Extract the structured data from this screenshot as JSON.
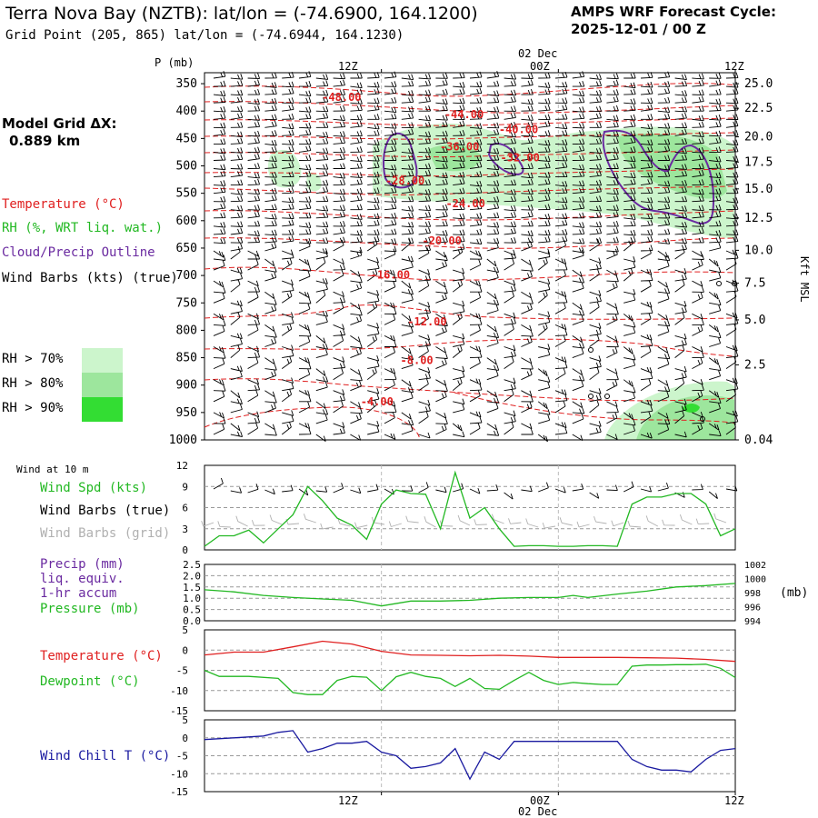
{
  "header": {
    "title": "Terra Nova Bay (NZTB):  lat/lon = (-74.6900, 164.1200)",
    "subtitle": "Grid Point (205, 865) lat/lon = (-74.6944, 164.1230)",
    "cycle_line1": "AMPS WRF Forecast Cycle:",
    "cycle_line2": "2025-12-01 / 00  Z"
  },
  "model": {
    "label": "Model Grid ΔX:",
    "value": "0.889 km"
  },
  "colors": {
    "temperature": "#e02020",
    "rh": "#22b822",
    "cloud": "#6a2aa0",
    "pressure": "#22b822",
    "windchill": "#1a1aa0",
    "rh70": "#ccf5cc",
    "rh80": "#9de69d",
    "rh90": "#33dd33",
    "grid_barb": "#b0b0b0"
  },
  "upper": {
    "legend": {
      "temperature": "Temperature (°C)",
      "rh": "RH (%, WRT liq. wat.)",
      "cloud": "Cloud/Precip Outline",
      "wind": "Wind Barbs (kts) (true)"
    },
    "rh_legend": [
      {
        "label": "RH > 70%"
      },
      {
        "label": "RH > 80%"
      },
      {
        "label": "RH > 90%"
      }
    ],
    "time_axis": {
      "date_label": "02 Dec",
      "ticks": [
        "12Z",
        "00Z",
        "12Z"
      ]
    },
    "p_label": "P (mb)",
    "right_axis_label": "Kft MSL"
  },
  "wind_panel": {
    "heading": "Wind at 10 m",
    "legend": {
      "speed": "Wind Spd (kts)",
      "barbs_true": "Wind Barbs (true)",
      "barbs_grid": "Wind Barbs (grid)"
    }
  },
  "precip_panel": {
    "legend": {
      "l1": "Precip (mm)",
      "l2": "liq. equiv.",
      "l3": "1-hr accum",
      "l4": "Pressure (mb)"
    },
    "right_unit": "(mb)"
  },
  "temp_panel": {
    "legend": {
      "temp": "Temperature (°C)",
      "dew": "Dewpoint (°C)"
    }
  },
  "chill_panel": {
    "legend": {
      "chill": "Wind Chill T (°C)"
    }
  },
  "bottom_axis": {
    "ticks": [
      "12Z",
      "00Z",
      "12Z"
    ],
    "date_label": "02 Dec"
  },
  "chart_data": [
    {
      "type": "heatmap",
      "title": "Terra Nova Bay (NZTB):  lat/lon = (-74.6900, 164.1200)",
      "x": {
        "range_hours": [
          0,
          36
        ],
        "ticks": [
          {
            "hour": 12,
            "label": "12Z"
          },
          {
            "hour": 24,
            "label": "00Z"
          },
          {
            "hour": 36,
            "label": "12Z"
          }
        ],
        "date_label": "02 Dec"
      },
      "y": {
        "label": "P (mb)",
        "range": [
          1000,
          330
        ],
        "ticks": [
          350,
          400,
          450,
          500,
          550,
          600,
          650,
          700,
          750,
          800,
          850,
          900,
          950,
          1000
        ]
      },
      "y2": {
        "label": "Kft MSL",
        "ticks": [
          {
            "label": "25.0",
            "p": 350
          },
          {
            "label": "22.5",
            "p": 395
          },
          {
            "label": "20.0",
            "p": 447
          },
          {
            "label": "17.5",
            "p": 493
          },
          {
            "label": "15.0",
            "p": 542
          },
          {
            "label": "12.5",
            "p": 595
          },
          {
            "label": "10.0",
            "p": 654
          },
          {
            "label": "7.5",
            "p": 714
          },
          {
            "label": "5.0",
            "p": 781
          },
          {
            "label": "2.5",
            "p": 863
          },
          {
            "label": "0.04",
            "p": 1000
          }
        ]
      },
      "temperature_contours": [
        {
          "label": "-48.00",
          "hour": 9.3,
          "p": 375
        },
        {
          "label": "-44.00",
          "hour": 17.6,
          "p": 406
        },
        {
          "label": "-40.00",
          "hour": 21.3,
          "p": 434
        },
        {
          "label": "-36.00",
          "hour": 17.3,
          "p": 465
        },
        {
          "label": "-32.00",
          "hour": 21.4,
          "p": 485
        },
        {
          "label": "-28.00",
          "hour": 13.6,
          "p": 527
        },
        {
          "label": "-24.00",
          "hour": 17.7,
          "p": 569
        },
        {
          "label": "-20.00",
          "hour": 16.1,
          "p": 637
        },
        {
          "label": "-16.00",
          "hour": 12.6,
          "p": 699
        },
        {
          "label": "-12.00",
          "hour": 15.1,
          "p": 784
        },
        {
          "label": "-8.00",
          "hour": 14.4,
          "p": 855
        },
        {
          "label": "-4.00",
          "hour": 11.7,
          "p": 930
        }
      ],
      "rh_legend": [
        "RH > 70%",
        "RH > 80%",
        "RH > 90%"
      ]
    },
    {
      "type": "line",
      "series": [
        {
          "name": "Wind Spd (kts)",
          "x": [
            0,
            1,
            2,
            3,
            4,
            5,
            6,
            7,
            8,
            9,
            10,
            11,
            12,
            13,
            14,
            15,
            16,
            17,
            18,
            19,
            20,
            21,
            22,
            23,
            24,
            25,
            26,
            27,
            28,
            29,
            30,
            31,
            32,
            33,
            34,
            35,
            36
          ],
          "values": [
            0.5,
            2,
            2,
            2.8,
            1,
            3,
            5,
            9,
            7,
            4.5,
            3.5,
            1.5,
            6.5,
            8.5,
            8.0,
            7.9,
            3,
            11,
            4.5,
            6,
            3,
            0.5,
            0.6,
            0.6,
            0.5,
            0.5,
            0.6,
            0.6,
            0.5,
            6.5,
            7.5,
            7.5,
            8,
            8,
            6.5,
            2,
            3
          ]
        }
      ],
      "ylim": [
        0,
        12
      ],
      "yticks": [
        0,
        3,
        6,
        9,
        12
      ]
    },
    {
      "type": "line",
      "series": [
        {
          "name": "Pressure (mb)",
          "x": [
            0,
            2,
            4,
            6,
            8,
            10,
            12,
            14,
            16,
            18,
            20,
            22,
            24,
            25,
            26,
            28,
            30,
            32,
            34,
            36
          ],
          "values": [
            998.4,
            998.1,
            997.6,
            997.3,
            997.1,
            996.9,
            996.1,
            996.8,
            996.8,
            996.9,
            997.2,
            997.3,
            997.3,
            997.6,
            997.3,
            997.8,
            998.2,
            998.8,
            999.0,
            999.3
          ]
        }
      ],
      "ylim": [
        994,
        1002
      ],
      "yticks_left": [
        0,
        0.5,
        1.0,
        1.5,
        2.0,
        2.5
      ],
      "yticks_right": [
        994,
        996,
        998,
        1000,
        1002
      ]
    },
    {
      "type": "line",
      "series": [
        {
          "name": "Temperature (°C)",
          "x": [
            0,
            2,
            4,
            6,
            8,
            10,
            12,
            14,
            16,
            18,
            20,
            22,
            24,
            26,
            28,
            30,
            32,
            34,
            36
          ],
          "values": [
            -1.2,
            -0.5,
            -0.5,
            0.8,
            2.2,
            1.5,
            -0.3,
            -1.2,
            -1.3,
            -1.4,
            -1.3,
            -1.5,
            -1.8,
            -1.8,
            -1.8,
            -1.9,
            -2.0,
            -2.3,
            -2.8
          ]
        },
        {
          "name": "Dewpoint (°C)",
          "x": [
            0,
            1,
            3,
            5,
            6,
            7,
            8,
            9,
            10,
            11,
            12,
            13,
            14,
            15,
            16,
            17,
            18,
            19,
            20,
            21,
            22,
            23,
            24,
            25,
            26,
            27,
            28,
            29,
            30,
            31,
            32,
            33,
            34,
            35,
            36
          ],
          "values": [
            -5,
            -6.5,
            -6.5,
            -7,
            -10.5,
            -11,
            -11,
            -7.5,
            -6.5,
            -6.7,
            -10,
            -6.6,
            -5.5,
            -6.5,
            -7,
            -9,
            -7,
            -9.5,
            -9.7,
            -7.5,
            -5.5,
            -7.5,
            -8.5,
            -8,
            -8.3,
            -8.5,
            -8.5,
            -4,
            -3.7,
            -3.7,
            -3.6,
            -3.6,
            -3.5,
            -4.5,
            -6.8
          ]
        }
      ],
      "ylim": [
        -15,
        5
      ],
      "yticks": [
        -15,
        -10,
        -5,
        0,
        5
      ]
    },
    {
      "type": "line",
      "series": [
        {
          "name": "Wind Chill T (°C)",
          "x": [
            0,
            2,
            4,
            5,
            6,
            7,
            8,
            9,
            10,
            11,
            12,
            13,
            14,
            15,
            16,
            17,
            18,
            19,
            20,
            21,
            22,
            23,
            24,
            25,
            26,
            27,
            28,
            29,
            30,
            31,
            32,
            33,
            34,
            35,
            36
          ],
          "values": [
            -0.5,
            0,
            0.5,
            1.5,
            2,
            -4,
            -3,
            -1.5,
            -1.5,
            -1,
            -4,
            -5,
            -8.5,
            -8,
            -7,
            -3,
            -11.5,
            -4,
            -6,
            -1,
            -1,
            -1,
            -1,
            -1,
            -1,
            -1,
            -1,
            -6,
            -8,
            -9,
            -9,
            -9.5,
            -6,
            -3.5,
            -3
          ]
        }
      ],
      "ylim": [
        -15,
        5
      ],
      "yticks": [
        -15,
        -10,
        -5,
        0,
        5
      ]
    }
  ]
}
